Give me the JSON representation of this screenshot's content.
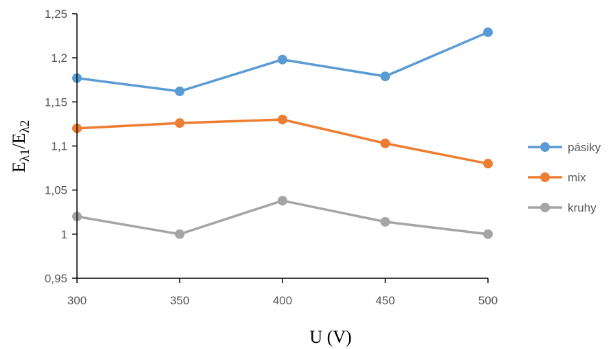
{
  "chart_data": {
    "type": "line",
    "x": [
      300,
      350,
      400,
      450,
      500
    ],
    "xlabel": "U (V)",
    "ylabel_main": "E",
    "ylabel_sub1": "λ1",
    "ylabel_sep": "/E",
    "ylabel_sub2": "λ2",
    "ylim": [
      0.95,
      1.25
    ],
    "yticks": [
      0.95,
      1.0,
      1.05,
      1.1,
      1.15,
      1.2,
      1.25
    ],
    "ytick_labels": [
      "0,95",
      "1",
      "1,05",
      "1,1",
      "1,15",
      "1,2",
      "1,25"
    ],
    "xtick_labels": [
      "300",
      "350",
      "400",
      "450",
      "500"
    ],
    "grid": false,
    "legend_position": "right",
    "series": [
      {
        "name": "pásiky",
        "color": "#5B9BD5",
        "values": [
          1.177,
          1.162,
          1.198,
          1.179,
          1.229
        ]
      },
      {
        "name": "mix",
        "color": "#ED7D31",
        "values": [
          1.12,
          1.126,
          1.13,
          1.103,
          1.08
        ]
      },
      {
        "name": "kruhy",
        "color": "#A5A5A5",
        "values": [
          1.02,
          1.0,
          1.038,
          1.014,
          1.0
        ]
      }
    ]
  }
}
